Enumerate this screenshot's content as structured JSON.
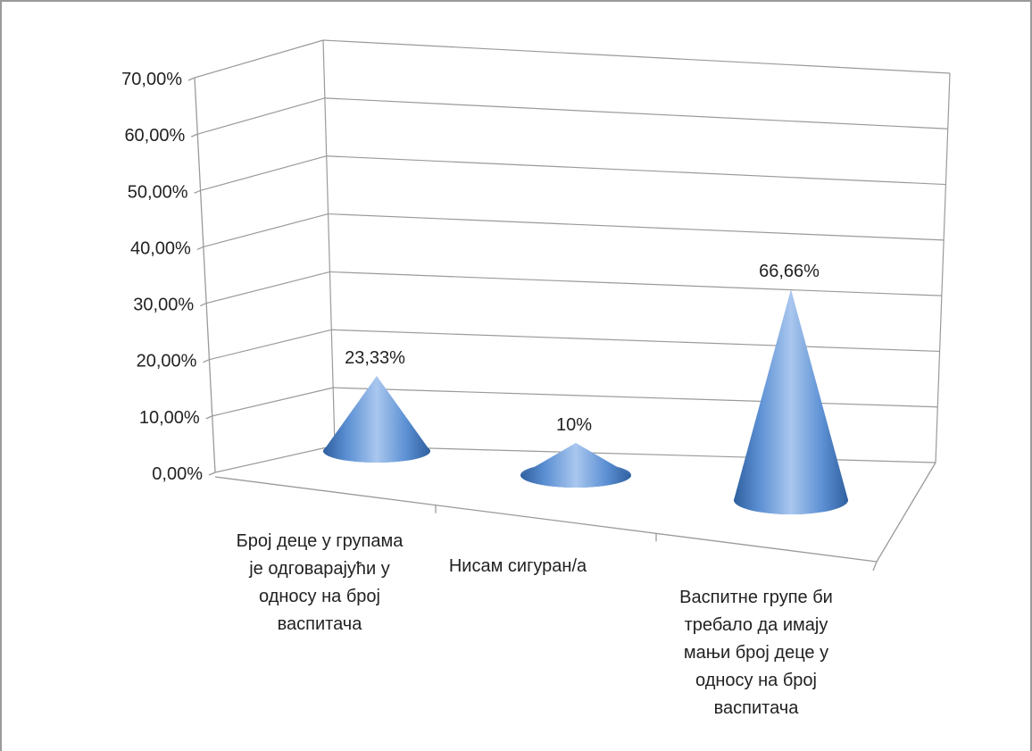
{
  "chart_data": {
    "type": "bar",
    "shape": "3d-cone",
    "categories": [
      [
        "Број деце у групама",
        "је одговарајући у",
        "односу на број",
        "васпитача"
      ],
      [
        "Нисам сигуран/а"
      ],
      [
        "Васпитне групе би",
        "требало да имају",
        "мањи број деце у",
        "односу на број",
        "васпитача"
      ]
    ],
    "values": [
      23.33,
      10,
      66.66
    ],
    "data_labels": [
      "23,33%",
      "10%",
      "66,66%"
    ],
    "y_ticks": [
      "0,00%",
      "10,00%",
      "20,00%",
      "30,00%",
      "40,00%",
      "50,00%",
      "60,00%",
      "70,00%"
    ],
    "ylim": [
      0,
      70
    ],
    "grid": true,
    "legend": "none",
    "title": "",
    "xlabel": "",
    "ylabel": "",
    "colors": {
      "cone_light": "#a9c7ee",
      "cone_mid": "#5b8fd3",
      "cone_dark": "#2f5f9e",
      "grid": "#9a9a9a",
      "frame": "#9a9a9a"
    }
  }
}
